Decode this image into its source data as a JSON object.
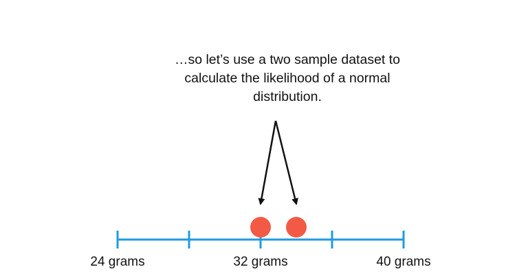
{
  "caption": {
    "lines": [
      "…so let’s use a two sample dataset to",
      "calculate the likelihood of a normal",
      "distribution."
    ]
  },
  "axis": {
    "min": 24,
    "max": 40,
    "ticks": [
      24,
      28,
      32,
      36,
      40
    ],
    "tick_labels": [
      {
        "value": 24,
        "text": "24 grams"
      },
      {
        "value": 32,
        "text": "32 grams"
      },
      {
        "value": 40,
        "text": "40 grams"
      }
    ]
  },
  "samples": [
    32,
    34
  ],
  "colors": {
    "axis": "#1f9ae0",
    "point": "#f25a45",
    "arrow": "#111111",
    "text": "#111111"
  }
}
